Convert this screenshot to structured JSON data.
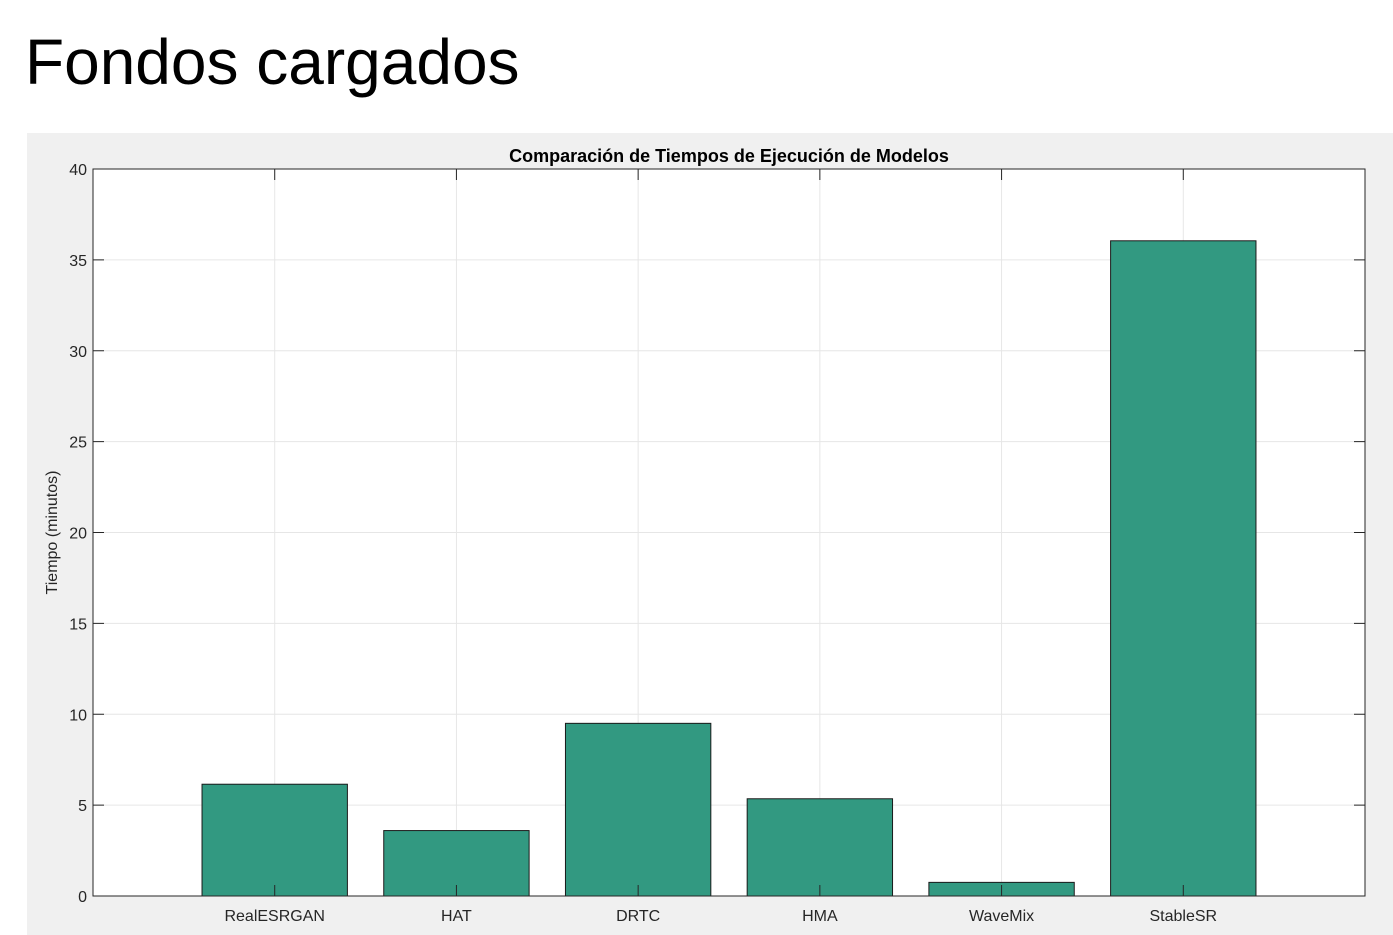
{
  "page": {
    "title": "Fondos cargados"
  },
  "chart_data": {
    "type": "bar",
    "title": "Comparación de Tiempos de Ejecución de Modelos",
    "xlabel": "",
    "ylabel": "Tiempo (minutos)",
    "categories": [
      "RealESRGAN",
      "HAT",
      "DRTC",
      "HMA",
      "WaveMix",
      "StableSR"
    ],
    "values": [
      6.15,
      3.6,
      9.5,
      5.35,
      0.75,
      36.05
    ],
    "ylim": [
      0,
      40
    ],
    "yticks": [
      0,
      5,
      10,
      15,
      20,
      25,
      30,
      35,
      40
    ],
    "xlim": [
      0,
      7
    ],
    "grid": true,
    "colors": {
      "bar_fill": "#329981",
      "bar_edge": "#1a1a1a",
      "grid": "#e6e6e6",
      "axes_box": "#262626",
      "figure_background": "#f0f0f0",
      "axes_background": "#ffffff"
    }
  }
}
